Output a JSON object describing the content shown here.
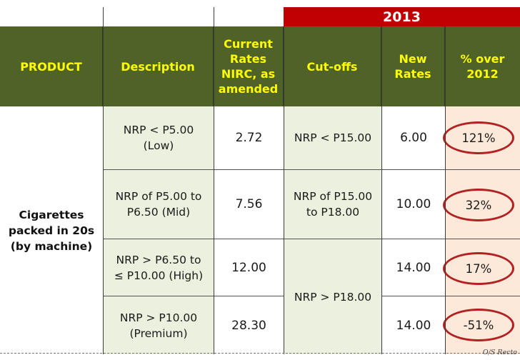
{
  "year": "2013",
  "headers": {
    "product": "PRODUCT",
    "description": "Description",
    "current_rates": "Current\nRates\nNIRC, as\namended",
    "cutoffs": "Cut-offs",
    "new_rates": "New\nRates",
    "pct_over": "% over\n2012"
  },
  "product": "Cigarettes\npacked in 20s\n(by machine)",
  "rows": [
    {
      "description": "NRP < P5.00\n(Low)",
      "current_rate": "2.72",
      "cutoff": "NRP < P15.00",
      "new_rate": "6.00",
      "pct": "121%"
    },
    {
      "description": "NRP of P5.00 to\nP6.50 (Mid)",
      "current_rate": "7.56",
      "cutoff": "NRP of P15.00\nto P18.00",
      "new_rate": "10.00",
      "pct": "32%"
    },
    {
      "description": "NRP > P6.50 to\n≤ P10.00 (High)",
      "current_rate": "12.00",
      "cutoff": "NRP > P18.00",
      "new_rate": "14.00",
      "pct": "17%"
    },
    {
      "description": "NRP > P10.00\n(Premium)",
      "current_rate": "28.30",
      "cutoff": "",
      "new_rate": "14.00",
      "pct": "-51%"
    }
  ],
  "watermark": "O/S Recto",
  "colors": {
    "header_bg": "#4f6228",
    "header_text": "#ffff00",
    "year_bg": "#c00000",
    "green_cell": "#ebf1de",
    "pink_cell": "#fde9d9",
    "ellipse": "#b22222"
  }
}
